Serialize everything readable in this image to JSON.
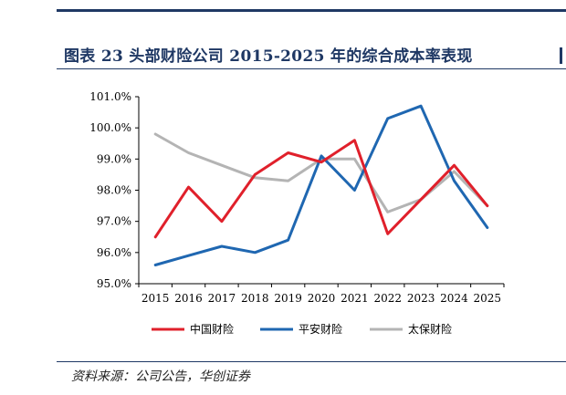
{
  "figure": {
    "title": "图表 23   头部财险公司 2015-2025 年的综合成本率表现",
    "source": "资料来源：公司公告，华创证券"
  },
  "chart_data": {
    "type": "line",
    "title": "",
    "xlabel": "",
    "ylabel": "",
    "x": [
      "2015",
      "2016",
      "2017",
      "2018",
      "2019",
      "2020",
      "2021",
      "2022",
      "2023",
      "2024",
      "2025"
    ],
    "ylim": [
      95.0,
      101.0
    ],
    "yticks": [
      "95.0%",
      "96.0%",
      "97.0%",
      "98.0%",
      "99.0%",
      "100.0%",
      "101.0%"
    ],
    "grid": false,
    "legend_position": "bottom",
    "series": [
      {
        "name": "中国财险",
        "color": "#e0202b",
        "values": [
          96.5,
          98.1,
          97.0,
          98.5,
          99.2,
          98.9,
          99.6,
          96.6,
          97.7,
          98.8,
          97.5
        ]
      },
      {
        "name": "平安财险",
        "color": "#1f67b1",
        "values": [
          95.6,
          95.9,
          96.2,
          96.0,
          96.4,
          99.1,
          98.0,
          100.3,
          100.7,
          98.3,
          96.8
        ]
      },
      {
        "name": "太保财险",
        "color": "#b4b4b4",
        "values": [
          99.8,
          99.2,
          98.8,
          98.4,
          98.3,
          99.0,
          99.0,
          97.3,
          97.7,
          98.6,
          97.5
        ]
      }
    ]
  }
}
